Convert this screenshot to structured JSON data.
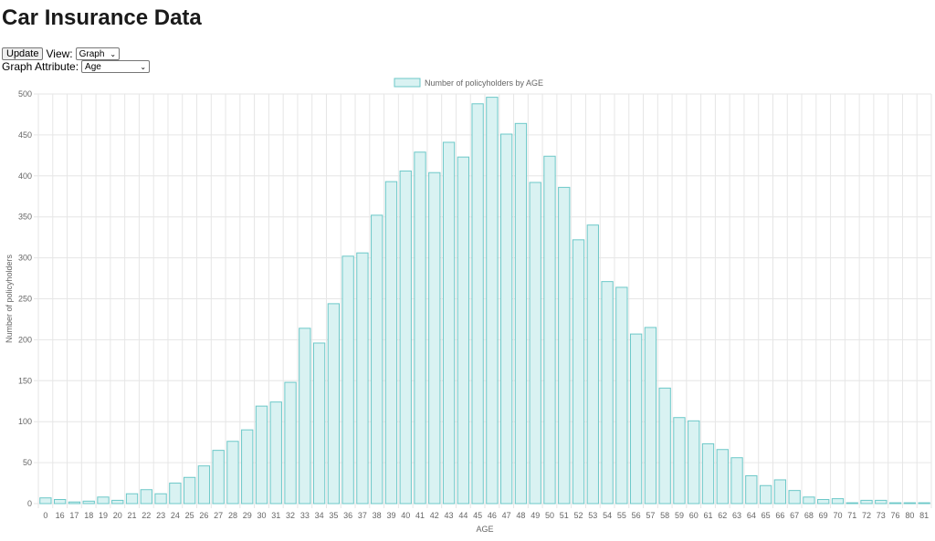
{
  "page": {
    "title": "Car Insurance Data"
  },
  "controls": {
    "update_label": "Update",
    "view_label": "View:",
    "view_value": "Graph",
    "attribute_label": "Graph Attribute:",
    "attribute_value": "Age",
    "chevron_icon": "chevron-down-icon"
  },
  "chart_data": {
    "type": "bar",
    "legend": "Number of policyholders by AGE",
    "legend_position": "top-center",
    "xlabel": "AGE",
    "ylabel": "Number of policyholders",
    "ylim": [
      0,
      500
    ],
    "yticks": [
      0,
      50,
      100,
      150,
      200,
      250,
      300,
      350,
      400,
      450,
      500
    ],
    "grid": true,
    "colors": {
      "bar_fill": "#d9f2f2",
      "bar_stroke": "#6cc8c8",
      "grid": "#e6e6e6",
      "tick_text": "#666666"
    },
    "categories": [
      "0",
      "16",
      "17",
      "18",
      "19",
      "20",
      "21",
      "22",
      "23",
      "24",
      "25",
      "26",
      "27",
      "28",
      "29",
      "30",
      "31",
      "32",
      "33",
      "34",
      "35",
      "36",
      "37",
      "38",
      "39",
      "40",
      "41",
      "42",
      "43",
      "44",
      "45",
      "46",
      "47",
      "48",
      "49",
      "50",
      "51",
      "52",
      "53",
      "54",
      "55",
      "56",
      "57",
      "58",
      "59",
      "60",
      "61",
      "62",
      "63",
      "64",
      "65",
      "66",
      "67",
      "68",
      "69",
      "70",
      "71",
      "72",
      "73",
      "76",
      "80",
      "81"
    ],
    "values": [
      7,
      5,
      2,
      3,
      8,
      4,
      12,
      17,
      12,
      25,
      32,
      46,
      65,
      76,
      90,
      119,
      124,
      148,
      214,
      196,
      244,
      302,
      306,
      352,
      393,
      406,
      429,
      404,
      441,
      423,
      488,
      496,
      451,
      464,
      392,
      424,
      386,
      322,
      340,
      271,
      264,
      207,
      215,
      141,
      105,
      101,
      73,
      66,
      56,
      34,
      22,
      29,
      16,
      8,
      5,
      6,
      1,
      4,
      4,
      1,
      1,
      1
    ]
  }
}
